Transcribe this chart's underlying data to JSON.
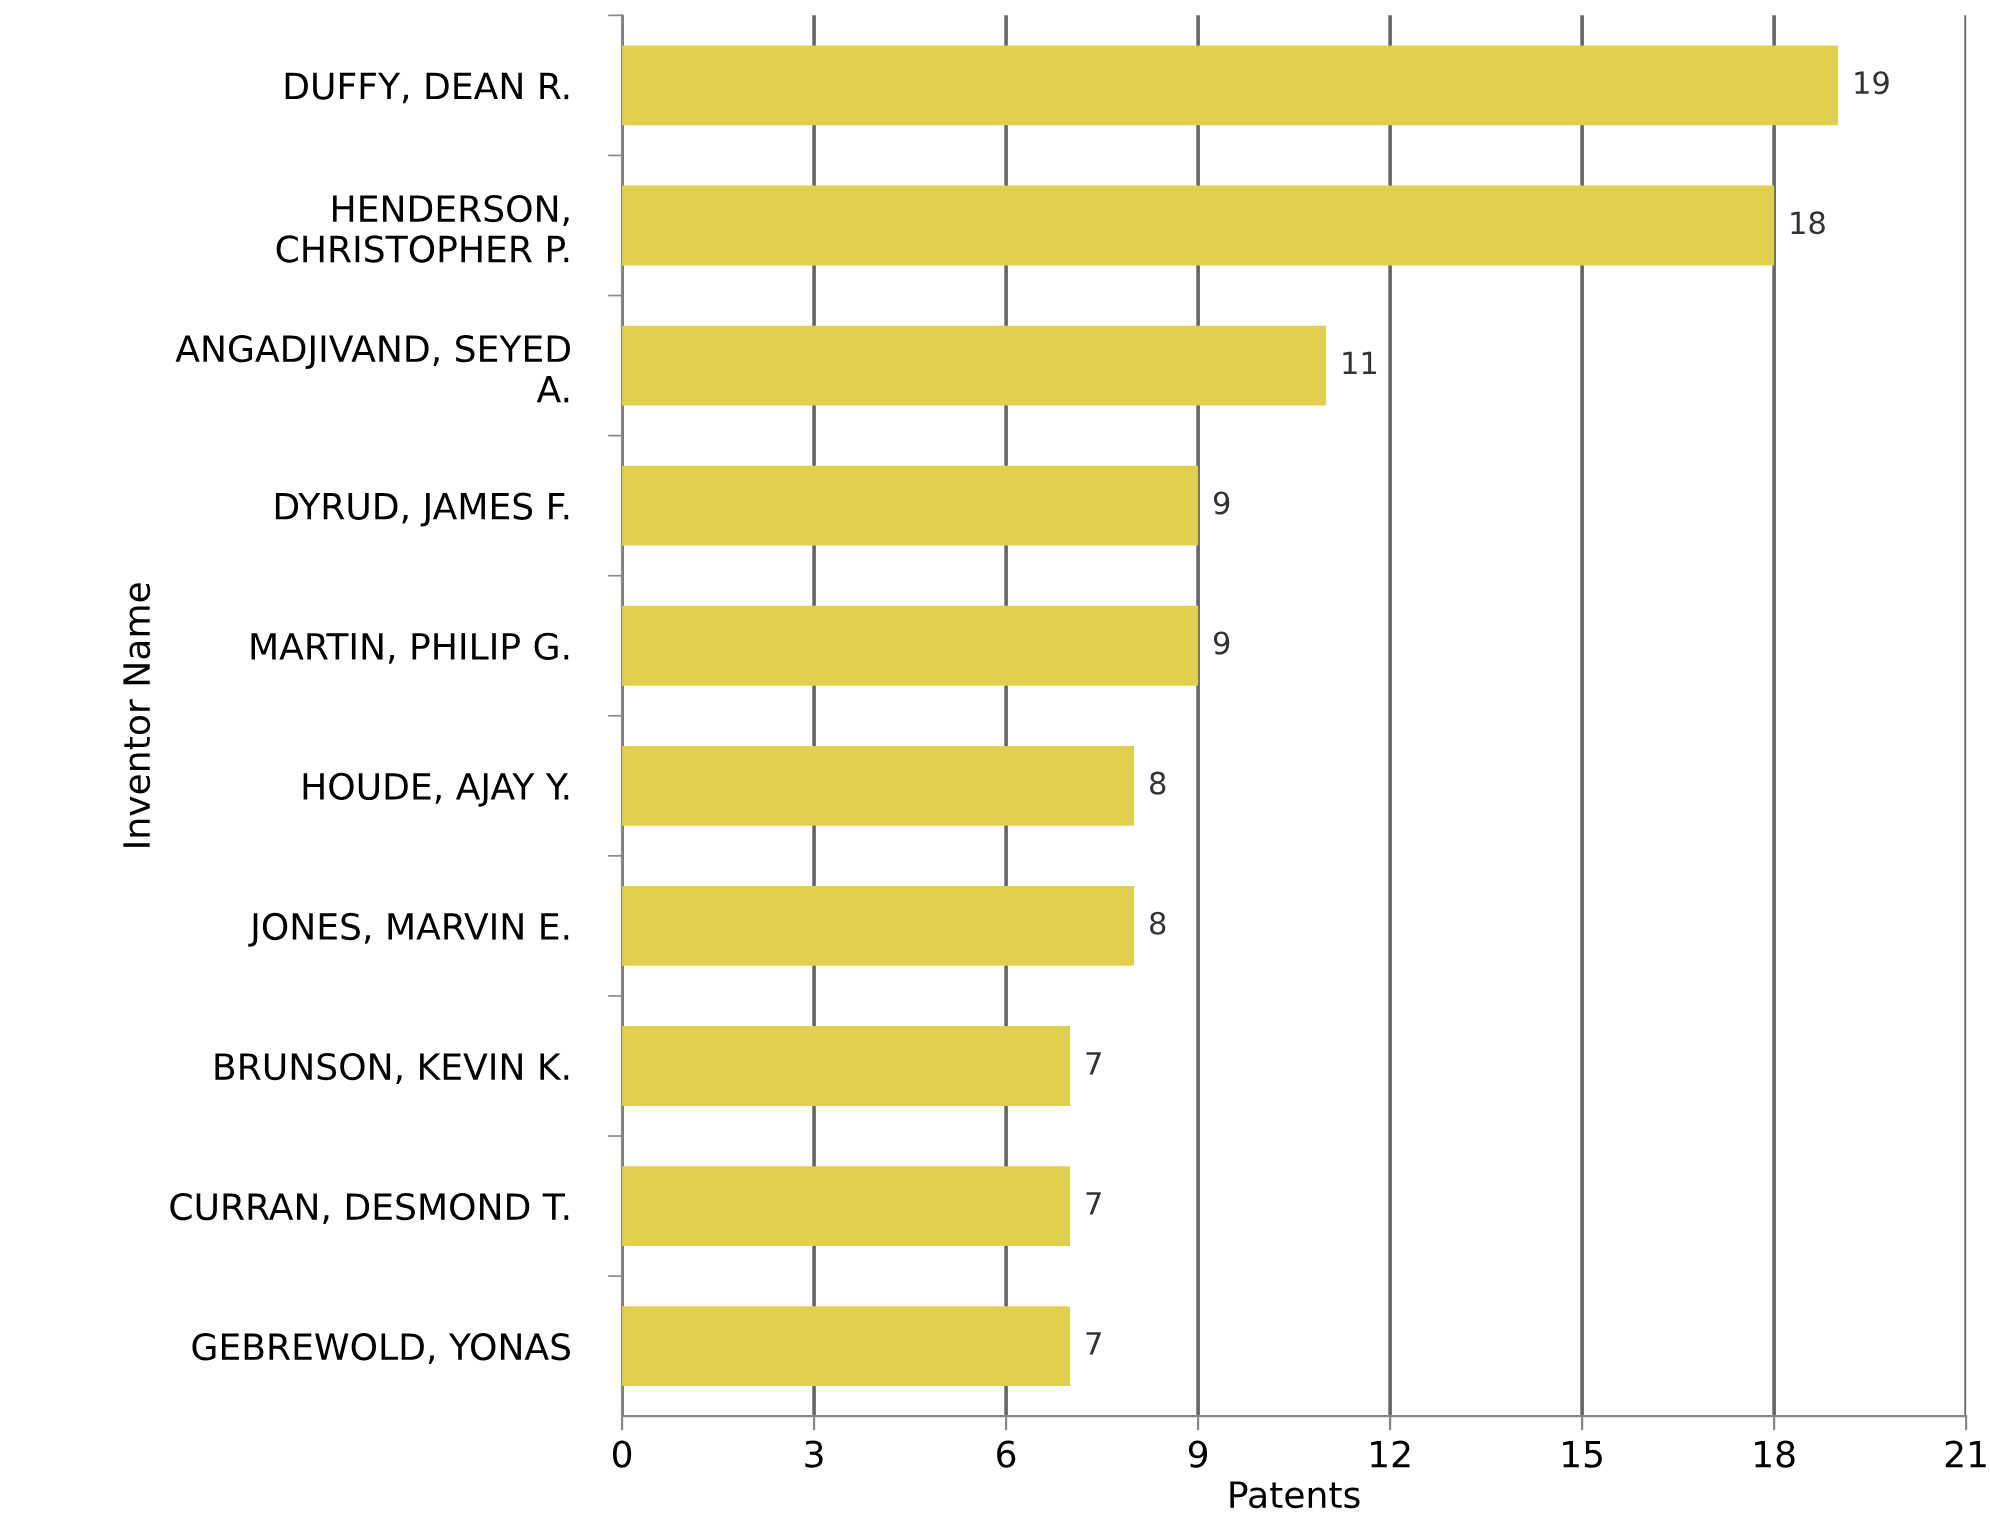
{
  "chart_data": {
    "type": "bar",
    "orientation": "horizontal",
    "xlabel": "Patents",
    "ylabel": "Inventor Name",
    "categories": [
      "DUFFY, DEAN R.",
      "HENDERSON,\nCHRISTOPHER P.",
      "ANGADJIVAND, SEYED\nA.",
      "DYRUD, JAMES F.",
      "MARTIN, PHILIP G.",
      "HOUDE, AJAY Y.",
      "JONES, MARVIN E.",
      "BRUNSON, KEVIN K.",
      "CURRAN, DESMOND T.",
      "GEBREWOLD, YONAS"
    ],
    "values": [
      19,
      18,
      11,
      9,
      9,
      8,
      8,
      7,
      7,
      7
    ],
    "color": "#e3cf4f",
    "xlim": [
      0,
      21
    ],
    "xticks": [
      0,
      3,
      6,
      9,
      12,
      15,
      18,
      21
    ],
    "grid": "x",
    "data_labels": true,
    "legend": false
  }
}
